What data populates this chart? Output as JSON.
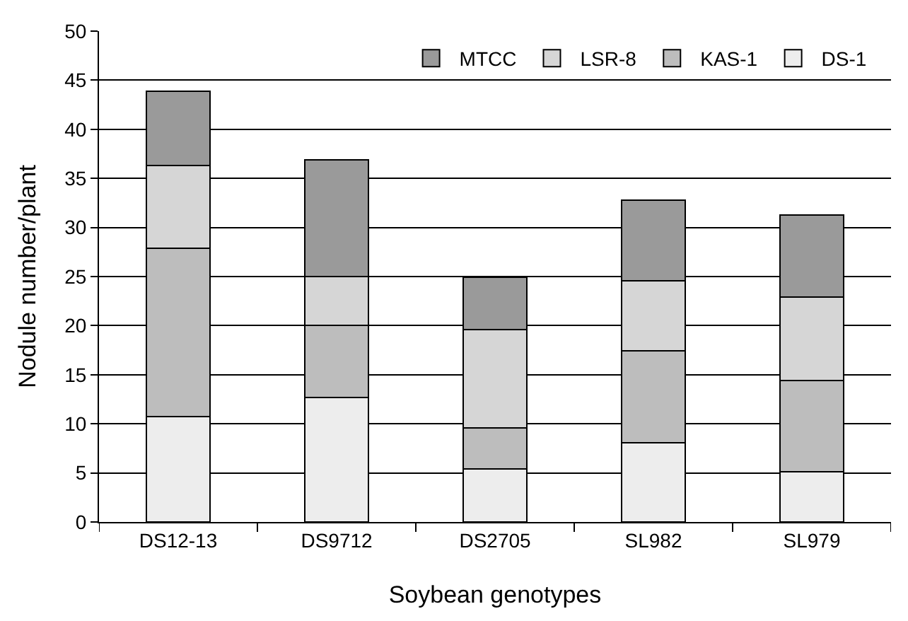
{
  "chart_data": {
    "type": "bar",
    "stacked": true,
    "xlabel": "Soybean genotypes",
    "ylabel": "Nodule number/plant",
    "categories": [
      "DS12-13",
      "DS9712",
      "DS2705",
      "SL982",
      "SL979"
    ],
    "series": [
      {
        "name": "DS-1",
        "color": "#ededed",
        "values": [
          10.7,
          12.7,
          5.4,
          8.1,
          5.1
        ]
      },
      {
        "name": "KAS-1",
        "color": "#bdbdbd",
        "values": [
          17.2,
          7.3,
          4.2,
          9.3,
          9.3
        ]
      },
      {
        "name": "LSR-8",
        "color": "#d6d6d6",
        "values": [
          8.4,
          5.0,
          10.0,
          7.2,
          8.5
        ]
      },
      {
        "name": "MTCC",
        "color": "#9a9a9a",
        "values": [
          7.6,
          11.9,
          5.3,
          8.2,
          8.4
        ]
      }
    ],
    "ylim": [
      0,
      50
    ],
    "yticks": [
      0,
      5,
      10,
      15,
      20,
      25,
      30,
      35,
      40,
      45,
      50
    ],
    "grid": "y",
    "legend": "top right"
  }
}
